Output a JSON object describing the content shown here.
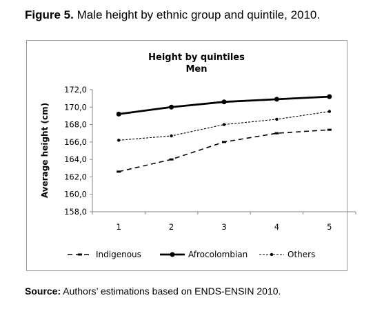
{
  "figure": {
    "label": "Figure 5.",
    "caption": " Male height by ethnic group and quintile, 2010."
  },
  "source": {
    "label": "Source:",
    "text": " Authors’ estimations based on ENDS-ENSIN 2010."
  },
  "chart_data": {
    "type": "line",
    "title": "Height by quintiles",
    "subtitle": "Men",
    "xlabel": "",
    "ylabel": "Average height (cm)",
    "x": [
      "1",
      "2",
      "3",
      "4",
      "5"
    ],
    "ylim": [
      158,
      172
    ],
    "yticks": [
      "158,0",
      "160,0",
      "162,0",
      "164,0",
      "166,0",
      "168,0",
      "170,0",
      "172,0"
    ],
    "grid": false,
    "legend_position": "bottom",
    "series": [
      {
        "name": "Indigenous",
        "values": [
          162.6,
          164.0,
          166.0,
          167.0,
          167.4
        ],
        "style": "dashed",
        "color": "#000000"
      },
      {
        "name": "Afrocolombian",
        "values": [
          169.2,
          170.0,
          170.6,
          170.9,
          171.2
        ],
        "style": "solid-bold",
        "color": "#000000"
      },
      {
        "name": "Others",
        "values": [
          166.2,
          166.7,
          168.0,
          168.6,
          169.5
        ],
        "style": "dotted",
        "color": "#000000"
      }
    ]
  }
}
